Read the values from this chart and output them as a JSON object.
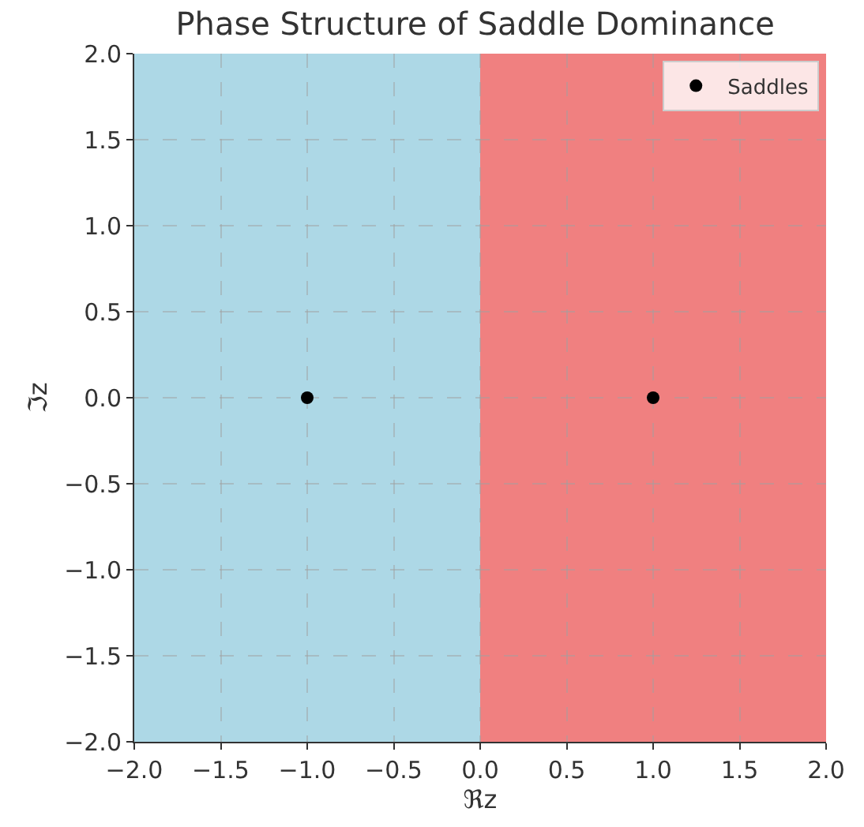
{
  "chart_data": {
    "type": "scatter",
    "title": "Phase Structure of Saddle Dominance",
    "xlabel": "ℜz",
    "ylabel": "ℑz",
    "x": [
      -1.0,
      1.0
    ],
    "series": [
      {
        "name": "Saddles",
        "color": "#000000",
        "values": [
          0.0,
          0.0
        ]
      }
    ],
    "bands": [
      {
        "axis": "x",
        "from": -2.0,
        "to": 0.0,
        "color": "#add8e6"
      },
      {
        "axis": "x",
        "from": 0.0,
        "to": 2.0,
        "color": "#f08080"
      }
    ],
    "xlim": [
      -2.0,
      2.0
    ],
    "ylim": [
      -2.0,
      2.0
    ],
    "xticks": [
      {
        "value": -2.0,
        "label": "−2.0"
      },
      {
        "value": -1.5,
        "label": "−1.5"
      },
      {
        "value": -1.0,
        "label": "−1.0"
      },
      {
        "value": -0.5,
        "label": "−0.5"
      },
      {
        "value": 0.0,
        "label": "0.0"
      },
      {
        "value": 0.5,
        "label": "0.5"
      },
      {
        "value": 1.0,
        "label": "1.0"
      },
      {
        "value": 1.5,
        "label": "1.5"
      },
      {
        "value": 2.0,
        "label": "2.0"
      }
    ],
    "yticks": [
      {
        "value": -2.0,
        "label": "−2.0"
      },
      {
        "value": -1.5,
        "label": "−1.5"
      },
      {
        "value": -1.0,
        "label": "−1.0"
      },
      {
        "value": -0.5,
        "label": "−0.5"
      },
      {
        "value": 0.0,
        "label": "0.0"
      },
      {
        "value": 0.5,
        "label": "0.5"
      },
      {
        "value": 1.0,
        "label": "1.0"
      },
      {
        "value": 1.5,
        "label": "1.5"
      },
      {
        "value": 2.0,
        "label": "2.0"
      }
    ],
    "grid": true,
    "legend": "top right",
    "marker": "circle"
  }
}
